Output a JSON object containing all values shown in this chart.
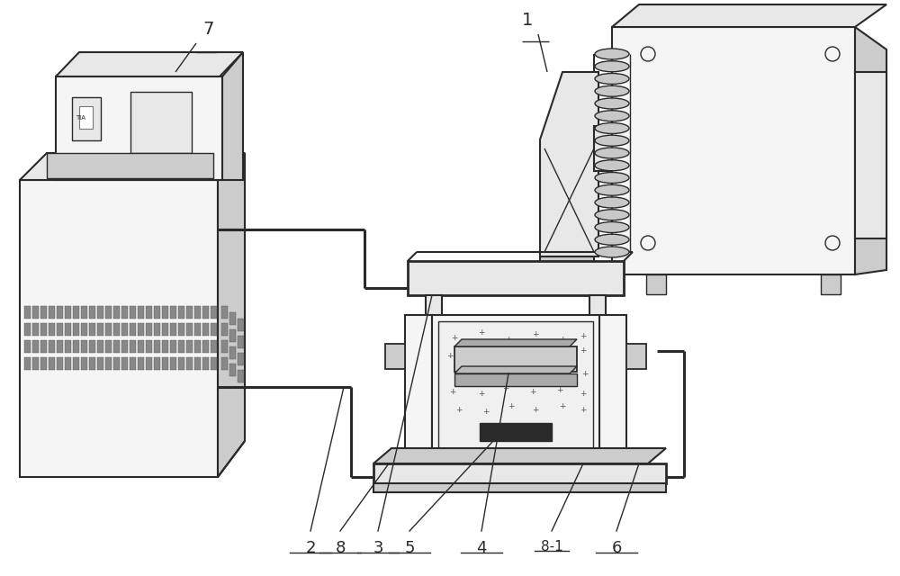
{
  "bg": "#ffffff",
  "lc": "#2a2a2a",
  "lw": 1.5,
  "wlw": 2.2,
  "gray1": "#f5f5f5",
  "gray2": "#e8e8e8",
  "gray3": "#cccccc",
  "gray4": "#aaaaaa",
  "dark": "#333333",
  "coil_fill": "#c8c8c8",
  "label_fs": 13
}
